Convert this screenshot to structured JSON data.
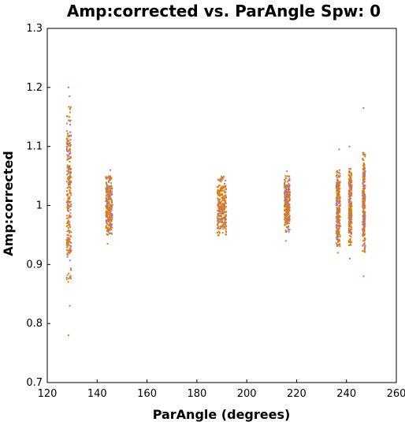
{
  "chart_data": {
    "type": "scatter",
    "title": "Amp:corrected vs. ParAngle Spw: 0",
    "xlabel": "ParAngle (degrees)",
    "ylabel": "Amp:corrected",
    "xlim": [
      120,
      260
    ],
    "ylim": [
      0.7,
      1.3
    ],
    "xticks": [
      "120",
      "140",
      "160",
      "180",
      "200",
      "220",
      "240",
      "260"
    ],
    "yticks": [
      "0.7",
      "0.8",
      "0.9",
      "1",
      "1.1",
      "1.2",
      "1.3"
    ],
    "grid": false,
    "legend": "none",
    "series_colors": [
      "#e07b10",
      "#9b6fe8",
      "#b8842a"
    ],
    "clusters": [
      {
        "x": 128.7,
        "y_min": 0.87,
        "y_max": 1.17,
        "outliers_low": [
          0.78,
          0.83
        ],
        "outliers_high": [
          1.2,
          1.185
        ]
      },
      {
        "x": 144.8,
        "y_min": 0.95,
        "y_max": 1.05,
        "outliers_low": [
          0.935
        ],
        "outliers_high": [
          1.06
        ]
      },
      {
        "x": 190.0,
        "y_min": 0.948,
        "y_max": 1.05,
        "outliers_low": [],
        "outliers_high": []
      },
      {
        "x": 216.2,
        "y_min": 0.955,
        "y_max": 1.05,
        "outliers_low": [
          0.94
        ],
        "outliers_high": [
          1.058
        ]
      },
      {
        "x": 236.7,
        "y_min": 0.93,
        "y_max": 1.06,
        "outliers_low": [
          0.92
        ],
        "outliers_high": [
          1.095
        ]
      },
      {
        "x": 241.5,
        "y_min": 0.93,
        "y_max": 1.07,
        "outliers_low": [
          0.91
        ],
        "outliers_high": [
          1.1
        ]
      },
      {
        "x": 247.0,
        "y_min": 0.92,
        "y_max": 1.09,
        "outliers_low": [
          0.88
        ],
        "outliers_high": [
          1.165
        ]
      }
    ]
  }
}
